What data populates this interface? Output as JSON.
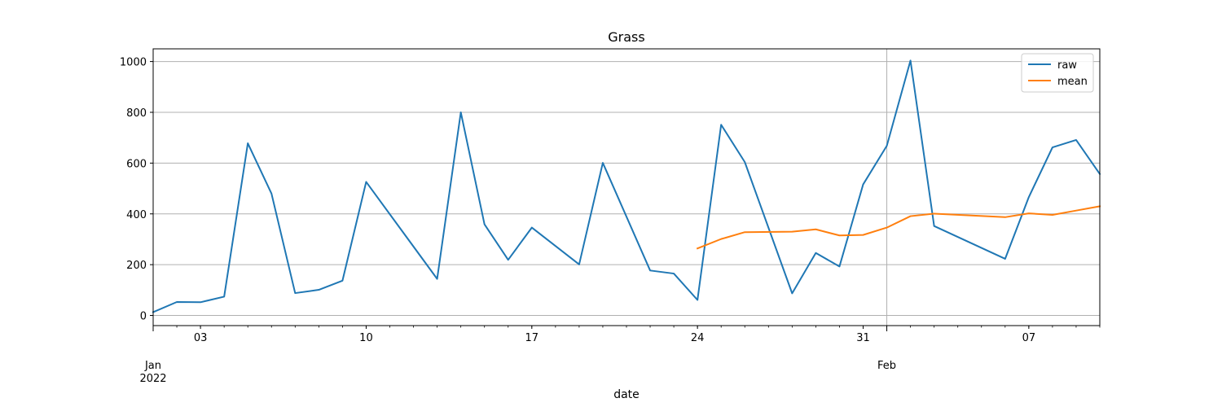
{
  "chart_data": {
    "type": "line",
    "title": "Grass",
    "xlabel": "date",
    "ylabel": "",
    "ylim": [
      -40,
      1050
    ],
    "xlim": [
      "2022-01-01",
      "2022-02-10"
    ],
    "y_ticks": [
      0,
      200,
      400,
      600,
      800,
      1000
    ],
    "x_ticks": [
      {
        "date": "2022-01-03",
        "label": "03",
        "sublabel": ""
      },
      {
        "date": "2022-01-10",
        "label": "10",
        "sublabel": ""
      },
      {
        "date": "2022-01-17",
        "label": "17",
        "sublabel": ""
      },
      {
        "date": "2022-01-24",
        "label": "24",
        "sublabel": ""
      },
      {
        "date": "2022-01-31",
        "label": "31",
        "sublabel": ""
      },
      {
        "date": "2022-02-07",
        "label": "07",
        "sublabel": ""
      }
    ],
    "x_major_labels": [
      {
        "date": "2022-01-01",
        "label": "Jan",
        "sublabel": "2022"
      },
      {
        "date": "2022-02-01",
        "label": "Feb",
        "sublabel": ""
      }
    ],
    "grid": true,
    "legend_position": "top-right",
    "series": [
      {
        "name": "raw",
        "color": "#1f77b4",
        "points": [
          [
            "2022-01-01",
            13
          ],
          [
            "2022-01-02",
            53
          ],
          [
            "2022-01-03",
            52
          ],
          [
            "2022-01-04",
            74
          ],
          [
            "2022-01-05",
            678
          ],
          [
            "2022-01-06",
            480
          ],
          [
            "2022-01-07",
            88
          ],
          [
            "2022-01-08",
            101
          ],
          [
            "2022-01-09",
            137
          ],
          [
            "2022-01-10",
            526
          ],
          [
            "2022-01-13",
            144
          ],
          [
            "2022-01-14",
            800
          ],
          [
            "2022-01-15",
            359
          ],
          [
            "2022-01-16",
            219
          ],
          [
            "2022-01-17",
            346
          ],
          [
            "2022-01-19",
            201
          ],
          [
            "2022-01-20",
            601
          ],
          [
            "2022-01-22",
            177
          ],
          [
            "2022-01-23",
            165
          ],
          [
            "2022-01-24",
            61
          ],
          [
            "2022-01-25",
            751
          ],
          [
            "2022-01-26",
            604
          ],
          [
            "2022-01-28",
            87
          ],
          [
            "2022-01-29",
            246
          ],
          [
            "2022-01-30",
            193
          ],
          [
            "2022-01-31",
            516
          ],
          [
            "2022-02-01",
            668
          ],
          [
            "2022-02-02",
            1004
          ],
          [
            "2022-02-03",
            352
          ],
          [
            "2022-02-06",
            223
          ],
          [
            "2022-02-07",
            466
          ],
          [
            "2022-02-08",
            662
          ],
          [
            "2022-02-09",
            691
          ],
          [
            "2022-02-10",
            557
          ]
        ]
      },
      {
        "name": "mean",
        "color": "#ff7f0e",
        "points": [
          [
            "2022-01-24",
            264
          ],
          [
            "2022-01-25",
            301
          ],
          [
            "2022-01-26",
            328
          ],
          [
            "2022-01-28",
            330
          ],
          [
            "2022-01-29",
            339
          ],
          [
            "2022-01-30",
            315
          ],
          [
            "2022-01-31",
            317
          ],
          [
            "2022-02-01",
            346
          ],
          [
            "2022-02-02",
            391
          ],
          [
            "2022-02-03",
            401
          ],
          [
            "2022-02-06",
            387
          ],
          [
            "2022-02-07",
            402
          ],
          [
            "2022-02-08",
            396
          ],
          [
            "2022-02-09",
            413
          ],
          [
            "2022-02-10",
            430
          ]
        ]
      }
    ]
  }
}
